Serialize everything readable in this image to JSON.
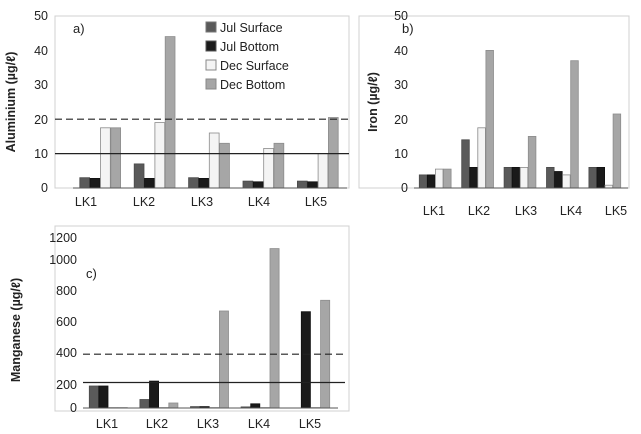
{
  "chart_data": [
    {
      "type": "bar",
      "panel_label": "a)",
      "ylabel": "Aluminium (µg/ℓ)",
      "ylim": [
        0,
        50
      ],
      "yticks": [
        0,
        10,
        20,
        30,
        40,
        50
      ],
      "categories": [
        "LK1",
        "LK2",
        "LK3",
        "LK4",
        "LK5"
      ],
      "series": [
        {
          "name": "Jul Surface",
          "color": "#5a5a5a",
          "values": [
            3.0,
            7.0,
            3.0,
            2.0,
            2.0
          ]
        },
        {
          "name": "Jul Bottom",
          "color": "#1a1a1a",
          "values": [
            2.8,
            2.8,
            2.8,
            1.8,
            1.8
          ]
        },
        {
          "name": "Dec Surface",
          "color": "#f4f4f4",
          "values": [
            17.5,
            19.0,
            16.0,
            11.5,
            10.0
          ]
        },
        {
          "name": "Dec Bottom",
          "color": "#a6a6a6",
          "values": [
            17.5,
            44.0,
            13.0,
            13.0,
            20.5
          ]
        }
      ],
      "reference_lines": [
        {
          "value": 20,
          "style": "dashed"
        },
        {
          "value": 10,
          "style": "solid"
        }
      ],
      "legend": "top-right"
    },
    {
      "type": "bar",
      "panel_label": "b)",
      "ylabel": "Iron (µg/ℓ)",
      "ylim": [
        0,
        50
      ],
      "yticks": [
        0,
        10,
        20,
        30,
        40,
        50
      ],
      "categories": [
        "LK1",
        "LK2",
        "LK3",
        "LK4",
        "LK5"
      ],
      "series": [
        {
          "name": "Jul Surface",
          "color": "#5a5a5a",
          "values": [
            3.8,
            14.0,
            6.0,
            6.0,
            6.0
          ]
        },
        {
          "name": "Jul Bottom",
          "color": "#1a1a1a",
          "values": [
            3.8,
            6.0,
            6.0,
            4.8,
            6.0
          ]
        },
        {
          "name": "Dec Surface",
          "color": "#f4f4f4",
          "values": [
            5.5,
            17.5,
            6.0,
            3.8,
            0.8
          ]
        },
        {
          "name": "Dec Bottom",
          "color": "#a6a6a6",
          "values": [
            5.5,
            40.0,
            15.0,
            37.0,
            21.5
          ]
        }
      ]
    },
    {
      "type": "bar",
      "panel_label": "c)",
      "ylabel": "Manganese (µg/ℓ)",
      "ylim": [
        0,
        1200
      ],
      "yticks": [
        0,
        200,
        400,
        600,
        800,
        1000,
        1200
      ],
      "categories": [
        "LK1",
        "LK2",
        "LK3",
        "LK4",
        "LK5"
      ],
      "series": [
        {
          "name": "Jul Surface",
          "color": "#5a5a5a",
          "values": [
            155,
            60,
            10,
            8,
            0
          ]
        },
        {
          "name": "Jul Bottom",
          "color": "#1a1a1a",
          "values": [
            155,
            190,
            10,
            30,
            680
          ]
        },
        {
          "name": "Dec Surface",
          "color": "#f4f4f4",
          "values": [
            3,
            3,
            3,
            3,
            3
          ]
        },
        {
          "name": "Dec Bottom",
          "color": "#a6a6a6",
          "values": [
            3,
            35,
            685,
            1125,
            760
          ]
        }
      ],
      "reference_lines": [
        {
          "value": 380,
          "style": "dashed"
        },
        {
          "value": 180,
          "style": "solid"
        }
      ]
    }
  ]
}
